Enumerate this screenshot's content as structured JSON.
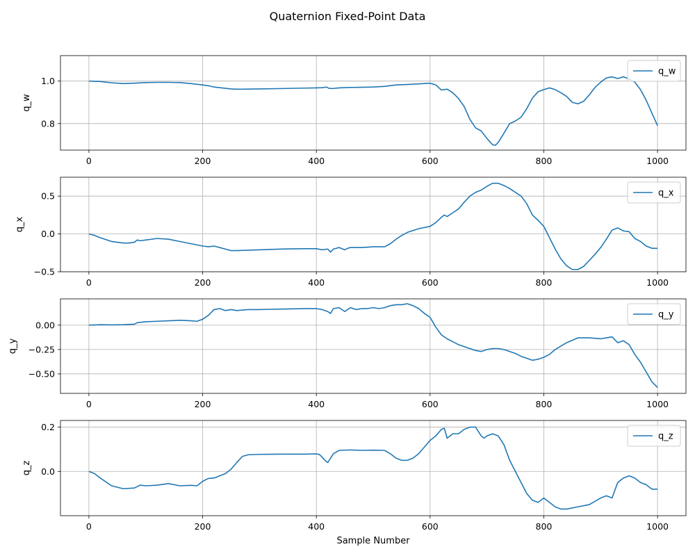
{
  "figure": {
    "title": "Quaternion Fixed-Point Data"
  },
  "chart_data": [
    {
      "type": "line",
      "ylabel": "q_w",
      "xlabel": "",
      "xlim": [
        -50,
        1050
      ],
      "ylim": [
        0.675,
        1.12
      ],
      "xticks": [
        0,
        200,
        400,
        600,
        800,
        1000
      ],
      "yticks": [
        0.8,
        1.0
      ],
      "ytick_labels": [
        "0.8",
        "1.0"
      ],
      "grid": true,
      "legend_position": "upper right",
      "series": [
        {
          "name": "q_w",
          "color": "#1f77b4",
          "x": [
            0,
            20,
            40,
            60,
            80,
            100,
            120,
            140,
            160,
            180,
            200,
            210,
            220,
            240,
            250,
            260,
            270,
            300,
            340,
            380,
            400,
            410,
            418,
            422,
            428,
            440,
            460,
            480,
            500,
            520,
            540,
            560,
            580,
            600,
            610,
            620,
            630,
            640,
            650,
            660,
            670,
            680,
            690,
            700,
            710,
            715,
            720,
            730,
            740,
            750,
            760,
            770,
            780,
            790,
            800,
            810,
            820,
            830,
            840,
            850,
            860,
            870,
            880,
            890,
            900,
            910,
            920,
            930,
            940,
            950,
            960,
            970,
            980,
            990,
            1000
          ],
          "y": [
            1.0,
            0.998,
            0.992,
            0.988,
            0.99,
            0.993,
            0.994,
            0.994,
            0.993,
            0.988,
            0.982,
            0.978,
            0.972,
            0.966,
            0.963,
            0.962,
            0.962,
            0.963,
            0.965,
            0.967,
            0.968,
            0.969,
            0.972,
            0.966,
            0.965,
            0.968,
            0.97,
            0.971,
            0.972,
            0.975,
            0.982,
            0.984,
            0.987,
            0.99,
            0.982,
            0.958,
            0.962,
            0.945,
            0.918,
            0.88,
            0.82,
            0.78,
            0.765,
            0.73,
            0.7,
            0.698,
            0.712,
            0.755,
            0.8,
            0.812,
            0.83,
            0.87,
            0.92,
            0.95,
            0.96,
            0.968,
            0.96,
            0.945,
            0.928,
            0.9,
            0.893,
            0.905,
            0.935,
            0.97,
            0.995,
            1.015,
            1.02,
            1.012,
            1.02,
            1.01,
            0.995,
            0.96,
            0.91,
            0.85,
            0.79
          ]
        }
      ]
    },
    {
      "type": "line",
      "ylabel": "q_x",
      "xlabel": "",
      "xlim": [
        -50,
        1050
      ],
      "ylim": [
        -0.5,
        0.75
      ],
      "xticks": [
        0,
        200,
        400,
        600,
        800,
        1000
      ],
      "yticks": [
        -0.5,
        0.0,
        0.5
      ],
      "ytick_labels": [
        "−0.5",
        "0.0",
        "0.5"
      ],
      "grid": true,
      "legend_position": "upper right",
      "series": [
        {
          "name": "q_x",
          "color": "#1f77b4",
          "x": [
            0,
            10,
            20,
            40,
            60,
            70,
            80,
            85,
            90,
            100,
            120,
            140,
            160,
            180,
            200,
            210,
            220,
            230,
            240,
            250,
            260,
            300,
            340,
            380,
            400,
            410,
            420,
            425,
            430,
            440,
            450,
            455,
            460,
            470,
            480,
            500,
            520,
            530,
            540,
            550,
            560,
            580,
            600,
            610,
            620,
            625,
            630,
            640,
            650,
            660,
            670,
            680,
            690,
            700,
            710,
            720,
            730,
            740,
            760,
            770,
            780,
            790,
            800,
            810,
            820,
            830,
            840,
            850,
            860,
            870,
            880,
            890,
            900,
            910,
            920,
            930,
            940,
            950,
            960,
            970,
            980,
            990,
            1000
          ],
          "y": [
            0.0,
            -0.02,
            -0.05,
            -0.1,
            -0.12,
            -0.12,
            -0.11,
            -0.08,
            -0.09,
            -0.08,
            -0.06,
            -0.07,
            -0.1,
            -0.13,
            -0.16,
            -0.17,
            -0.16,
            -0.18,
            -0.2,
            -0.22,
            -0.22,
            -0.21,
            -0.2,
            -0.195,
            -0.195,
            -0.21,
            -0.2,
            -0.24,
            -0.2,
            -0.18,
            -0.21,
            -0.19,
            -0.18,
            -0.18,
            -0.18,
            -0.17,
            -0.17,
            -0.13,
            -0.07,
            -0.02,
            0.02,
            0.07,
            0.1,
            0.15,
            0.22,
            0.25,
            0.23,
            0.28,
            0.33,
            0.42,
            0.5,
            0.55,
            0.58,
            0.63,
            0.67,
            0.67,
            0.64,
            0.6,
            0.5,
            0.4,
            0.25,
            0.18,
            0.1,
            -0.05,
            -0.2,
            -0.33,
            -0.42,
            -0.47,
            -0.47,
            -0.43,
            -0.35,
            -0.27,
            -0.18,
            -0.07,
            0.05,
            0.08,
            0.04,
            0.03,
            -0.06,
            -0.1,
            -0.16,
            -0.19,
            -0.19
          ]
        }
      ]
    },
    {
      "type": "line",
      "ylabel": "q_y",
      "xlabel": "",
      "xlim": [
        -50,
        1050
      ],
      "ylim": [
        -0.7,
        0.27
      ],
      "xticks": [
        0,
        200,
        400,
        600,
        800,
        1000
      ],
      "yticks": [
        -0.5,
        -0.25,
        0.0
      ],
      "ytick_labels": [
        "−0.50",
        "−0.25",
        "0.00"
      ],
      "grid": true,
      "legend_position": "upper right",
      "series": [
        {
          "name": "q_y",
          "color": "#1f77b4",
          "x": [
            0,
            20,
            40,
            60,
            80,
            85,
            100,
            120,
            140,
            160,
            180,
            190,
            200,
            210,
            220,
            230,
            240,
            250,
            260,
            280,
            300,
            340,
            380,
            400,
            410,
            420,
            425,
            430,
            440,
            450,
            455,
            460,
            470,
            480,
            490,
            500,
            510,
            520,
            530,
            540,
            550,
            560,
            570,
            580,
            590,
            600,
            610,
            620,
            630,
            640,
            650,
            660,
            670,
            680,
            690,
            700,
            710,
            720,
            730,
            740,
            750,
            760,
            770,
            780,
            790,
            800,
            810,
            820,
            840,
            860,
            880,
            900,
            910,
            920,
            930,
            940,
            950,
            960,
            970,
            980,
            990,
            1000
          ],
          "y": [
            0.0,
            0.005,
            0.003,
            0.005,
            0.01,
            0.025,
            0.035,
            0.04,
            0.045,
            0.05,
            0.045,
            0.04,
            0.06,
            0.1,
            0.16,
            0.17,
            0.15,
            0.16,
            0.15,
            0.16,
            0.16,
            0.165,
            0.17,
            0.17,
            0.16,
            0.14,
            0.12,
            0.17,
            0.18,
            0.14,
            0.16,
            0.18,
            0.16,
            0.17,
            0.17,
            0.18,
            0.17,
            0.18,
            0.2,
            0.21,
            0.21,
            0.22,
            0.2,
            0.17,
            0.12,
            0.08,
            -0.02,
            -0.1,
            -0.14,
            -0.17,
            -0.2,
            -0.22,
            -0.24,
            -0.26,
            -0.27,
            -0.25,
            -0.24,
            -0.24,
            -0.25,
            -0.27,
            -0.29,
            -0.32,
            -0.34,
            -0.36,
            -0.35,
            -0.33,
            -0.3,
            -0.25,
            -0.18,
            -0.13,
            -0.13,
            -0.14,
            -0.13,
            -0.12,
            -0.18,
            -0.16,
            -0.2,
            -0.3,
            -0.38,
            -0.48,
            -0.58,
            -0.64
          ]
        }
      ]
    },
    {
      "type": "line",
      "ylabel": "q_z",
      "xlabel": "Sample Number",
      "xlim": [
        -50,
        1050
      ],
      "ylim": [
        -0.2,
        0.23
      ],
      "xticks": [
        0,
        200,
        400,
        600,
        800,
        1000
      ],
      "yticks": [
        0.0,
        0.2
      ],
      "ytick_labels": [
        "0.0",
        "0.2"
      ],
      "grid": true,
      "legend_position": "upper right",
      "series": [
        {
          "name": "q_z",
          "color": "#1f77b4",
          "x": [
            0,
            10,
            20,
            40,
            60,
            80,
            90,
            100,
            120,
            140,
            150,
            160,
            180,
            190,
            200,
            210,
            220,
            230,
            240,
            250,
            260,
            270,
            280,
            300,
            340,
            380,
            400,
            405,
            410,
            415,
            420,
            425,
            430,
            440,
            460,
            480,
            500,
            520,
            530,
            540,
            550,
            560,
            570,
            580,
            590,
            600,
            610,
            620,
            625,
            630,
            640,
            650,
            660,
            670,
            680,
            690,
            695,
            700,
            710,
            720,
            730,
            740,
            750,
            760,
            770,
            780,
            790,
            800,
            810,
            820,
            830,
            840,
            860,
            880,
            900,
            910,
            920,
            930,
            940,
            950,
            960,
            970,
            980,
            990,
            1000
          ],
          "y": [
            0.0,
            -0.01,
            -0.03,
            -0.065,
            -0.078,
            -0.075,
            -0.062,
            -0.065,
            -0.062,
            -0.055,
            -0.06,
            -0.065,
            -0.063,
            -0.065,
            -0.045,
            -0.032,
            -0.03,
            -0.02,
            -0.01,
            0.01,
            0.04,
            0.068,
            0.075,
            0.077,
            0.078,
            0.078,
            0.079,
            0.077,
            0.065,
            0.05,
            0.04,
            0.06,
            0.08,
            0.095,
            0.097,
            0.095,
            0.096,
            0.095,
            0.08,
            0.06,
            0.05,
            0.05,
            0.06,
            0.08,
            0.11,
            0.14,
            0.16,
            0.19,
            0.195,
            0.15,
            0.17,
            0.17,
            0.19,
            0.2,
            0.2,
            0.16,
            0.15,
            0.16,
            0.17,
            0.16,
            0.12,
            0.05,
            0.0,
            -0.05,
            -0.1,
            -0.13,
            -0.14,
            -0.12,
            -0.14,
            -0.16,
            -0.17,
            -0.17,
            -0.16,
            -0.15,
            -0.12,
            -0.11,
            -0.12,
            -0.05,
            -0.03,
            -0.02,
            -0.03,
            -0.05,
            -0.06,
            -0.08,
            -0.08
          ]
        }
      ]
    }
  ]
}
